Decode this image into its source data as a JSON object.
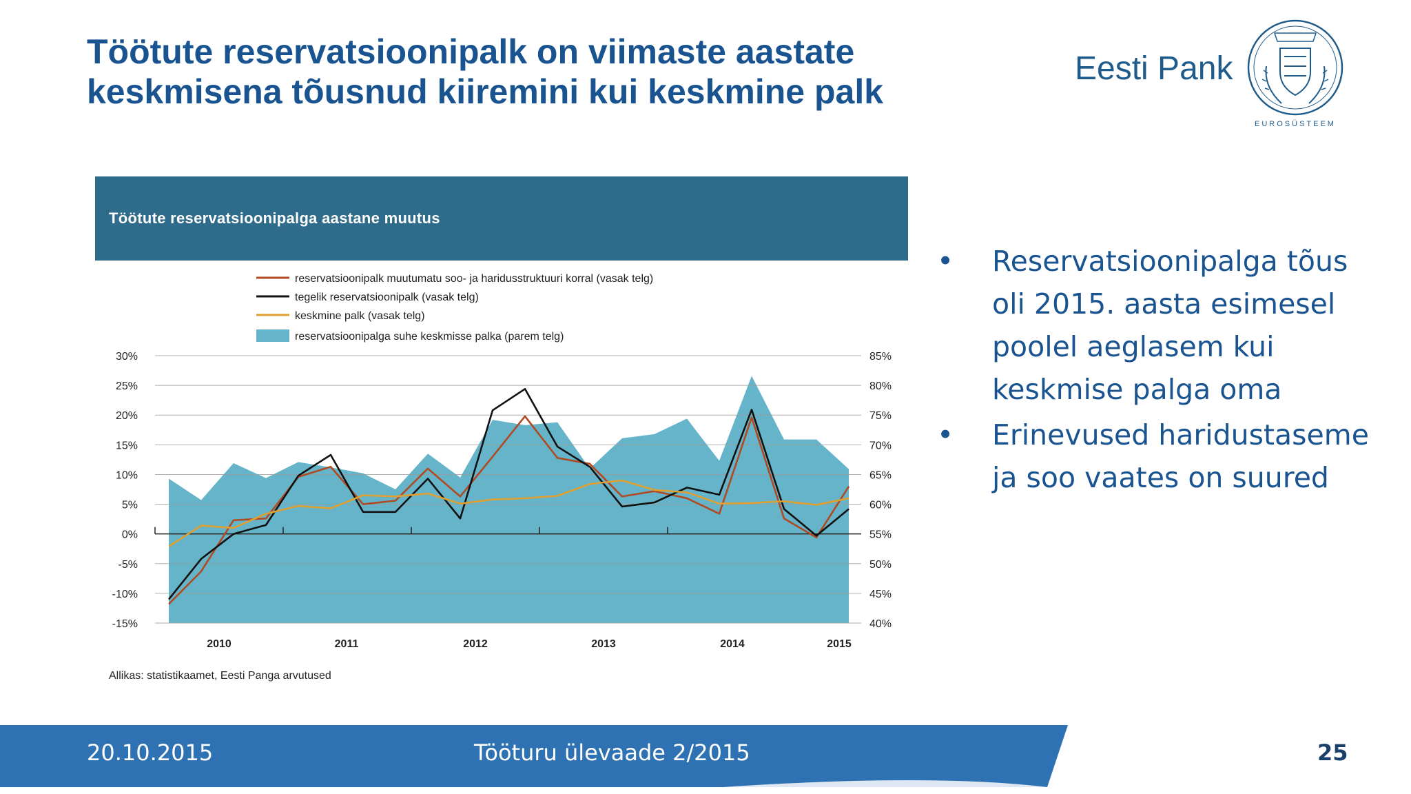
{
  "slide": {
    "title_line1": "Töötute reservatsioonipalk on viimaste aastate",
    "title_line2": "keskmisena tõusnud kiiremini kui keskmine palk",
    "brand": "Eesti Pank",
    "seal_caption": "EUROSÜSTEEM",
    "bullets": [
      "Reservatsioonipalga tõus oli 2015. aasta esimesel poolel aeglasem kui keskmise palga oma",
      "Erinevused haridustaseme ja soo vaates on suured"
    ],
    "footer_date": "20.10.2015",
    "footer_center": "Tööturu ülevaade 2/2015",
    "page_number": "25"
  },
  "colors": {
    "title": "#1a5490",
    "header_bg": "#2f6b8a",
    "area": "#65b4c9",
    "adjusted": "#b04a22",
    "actual": "#111111",
    "average": "#e0a030",
    "footer_blue": "#2f72b3"
  },
  "chart_data": {
    "type": "line",
    "title": "Töötute reservatsioonipalga aastane muutus",
    "source": "Allikas: statistikaamet, Eesti Panga arvutused",
    "x_labels": [
      "2010",
      "2011",
      "2012",
      "2013",
      "2014",
      "2015"
    ],
    "y_left_ticks": [
      "30%",
      "25%",
      "20%",
      "15%",
      "10%",
      "5%",
      "0%",
      "-5%",
      "-10%",
      "-15%"
    ],
    "y_right_ticks": [
      "85%",
      "80%",
      "75%",
      "70%",
      "65%",
      "60%",
      "55%",
      "50%",
      "45%",
      "40%"
    ],
    "ylim_left": [
      -15,
      30
    ],
    "ylim_right": [
      40,
      85
    ],
    "grid": true,
    "legend_position": "top",
    "x": [
      "2009Q4",
      "2010Q1",
      "2010Q2",
      "2010Q3",
      "2010Q4",
      "2011Q1",
      "2011Q2",
      "2011Q3",
      "2011Q4",
      "2012Q1",
      "2012Q2",
      "2012Q3",
      "2012Q4",
      "2013Q1",
      "2013Q2",
      "2013Q3",
      "2013Q4",
      "2014Q1",
      "2014Q2",
      "2014Q3",
      "2014Q4",
      "2015Q1",
      "2015Q2"
    ],
    "series": [
      {
        "name": "reservatsioonipalk muutumatu soo- ja haridusstruktuuri korral (vasak telg)",
        "axis": "left",
        "kind": "line",
        "color": "#b04a22",
        "values": [
          -11.8,
          -6.3,
          2.3,
          2.6,
          9.6,
          11.3,
          5.0,
          5.6,
          11.0,
          6.3,
          13.0,
          19.8,
          12.8,
          11.8,
          6.3,
          7.2,
          6.0,
          3.4,
          19.6,
          2.6,
          -0.6,
          8.0,
          null
        ]
      },
      {
        "name": "tegelik reservatsioonipalk (vasak telg)",
        "axis": "left",
        "kind": "line",
        "color": "#111111",
        "values": [
          -11.0,
          -4.2,
          0.0,
          1.5,
          9.8,
          13.3,
          3.7,
          3.7,
          9.3,
          2.6,
          20.8,
          24.4,
          14.7,
          11.3,
          4.6,
          5.3,
          7.8,
          6.6,
          20.9,
          4.2,
          -0.3,
          4.2,
          null
        ]
      },
      {
        "name": "keskmine palk (vasak telg)",
        "axis": "left",
        "kind": "line",
        "color": "#e0a030",
        "values": [
          -2.1,
          1.4,
          1.0,
          3.4,
          4.7,
          4.3,
          6.5,
          6.3,
          6.8,
          5.1,
          5.8,
          6.0,
          6.4,
          8.4,
          9.0,
          7.4,
          7.0,
          5.1,
          5.2,
          5.5,
          4.9,
          6.0,
          null
        ]
      },
      {
        "name": "reservatsioonipalga suhe keskmisse palka (parem telg)",
        "axis": "right",
        "kind": "area",
        "color": "#65b4c9",
        "values": [
          64.3,
          60.7,
          66.9,
          64.4,
          67.1,
          66.2,
          65.2,
          62.5,
          68.5,
          64.5,
          74.2,
          73.3,
          73.8,
          66.0,
          71.1,
          71.8,
          74.4,
          67.3,
          81.6,
          70.9,
          70.9,
          65.9,
          null
        ]
      }
    ]
  }
}
